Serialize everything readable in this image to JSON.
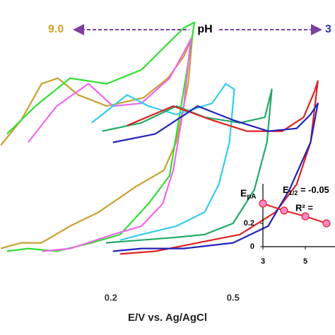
{
  "chart_data": [
    {
      "type": "line",
      "xlabel": "E/V vs. Ag/AgCl",
      "xlim": [
        -0.072,
        0.75
      ],
      "ylim": [
        0,
        100
      ],
      "xticks": [
        0.2,
        0.5
      ],
      "annotations": [
        {
          "text": "9.0",
          "color": "#c9a227"
        },
        {
          "text": "pH",
          "color": "#000000"
        },
        {
          "text": "3",
          "color": "#2b3aa8"
        }
      ],
      "arrow_color": "#7b3fa0",
      "series": [
        {
          "color": "#c8a030",
          "x": [
            -0.07,
            -0.02,
            0.03,
            0.07,
            0.12,
            0.19,
            0.28,
            0.34,
            0.38,
            0.4,
            0.39,
            0.36,
            0.33,
            0.26,
            0.17,
            0.1,
            0.03,
            -0.02,
            -0.07
          ],
          "values": [
            48,
            57,
            70,
            72,
            66,
            62,
            65,
            72,
            80,
            87,
            70,
            49,
            39,
            33,
            24,
            19,
            13,
            13,
            11
          ]
        },
        {
          "color": "#33dd33",
          "x": [
            -0.055,
            0.015,
            0.1,
            0.19,
            0.275,
            0.344,
            0.379,
            0.405,
            0.387,
            0.361,
            0.344,
            0.292,
            0.223,
            0.153,
            0.067,
            -0.003,
            -0.055
          ],
          "values": [
            52,
            62,
            72,
            70,
            75,
            85,
            90,
            92,
            75,
            52,
            37,
            27,
            16,
            13,
            10,
            11,
            10
          ]
        },
        {
          "color": "#ee66ee",
          "x": [
            -0.003,
            0.067,
            0.145,
            0.205,
            0.275,
            0.344,
            0.382,
            0.396,
            0.379,
            0.353,
            0.327,
            0.275,
            0.205,
            0.101,
            0.032
          ],
          "values": [
            49,
            62,
            70,
            62,
            63,
            72,
            82,
            86,
            62,
            39,
            27,
            19,
            16,
            11,
            10
          ]
        },
        {
          "color": "#33ccee",
          "x": [
            0.153,
            0.24,
            0.292,
            0.361,
            0.448,
            0.482,
            0.503,
            0.491,
            0.465,
            0.43,
            0.361,
            0.275,
            0.223
          ],
          "values": [
            56,
            66,
            62,
            59,
            63,
            70,
            68,
            49,
            34,
            24,
            19,
            16,
            14
          ]
        },
        {
          "color": "#22aa66",
          "x": [
            0.179,
            0.275,
            0.361,
            0.43,
            0.517,
            0.578,
            0.595,
            0.583,
            0.552,
            0.5,
            0.43,
            0.361,
            0.275,
            0.188
          ],
          "values": [
            53,
            56,
            62,
            58,
            56,
            58,
            68,
            49,
            32,
            20,
            16,
            15,
            14,
            13
          ]
        },
        {
          "color": "#dd2222",
          "x": [
            0.24,
            0.353,
            0.448,
            0.534,
            0.621,
            0.673,
            0.699,
            0.708,
            0.69,
            0.656,
            0.604,
            0.517,
            0.413,
            0.309,
            0.223
          ],
          "values": [
            55,
            62,
            57,
            53,
            53,
            58,
            67,
            71,
            49,
            34,
            24,
            16,
            13,
            10,
            9
          ]
        },
        {
          "color": "#2222bb",
          "x": [
            0.205,
            0.309,
            0.413,
            0.5,
            0.586,
            0.656,
            0.69,
            0.708,
            0.69,
            0.638,
            0.586,
            0.5,
            0.379,
            0.275,
            0.205
          ],
          "values": [
            49,
            52,
            62,
            57,
            53,
            54,
            59,
            63,
            49,
            32,
            19,
            13,
            11,
            11,
            10
          ]
        }
      ]
    },
    {
      "type": "scatter",
      "ylabel": {
        "symbol": "E",
        "subscript": "pA"
      },
      "annotation": {
        "symbol": "E",
        "subscript": "1/2",
        "text": " = -0.05"
      },
      "annotation2": "R² =",
      "x": [
        3,
        4,
        5,
        6
      ],
      "values": [
        0.37,
        0.31,
        0.26,
        0.2
      ],
      "color": "#e02020",
      "marker_color": "#ff88cc",
      "xlim": [
        3,
        6.4
      ],
      "ylim": [
        0,
        0.54
      ],
      "xticks": [
        3,
        5
      ],
      "yticks": [
        0,
        0.2
      ]
    }
  ]
}
